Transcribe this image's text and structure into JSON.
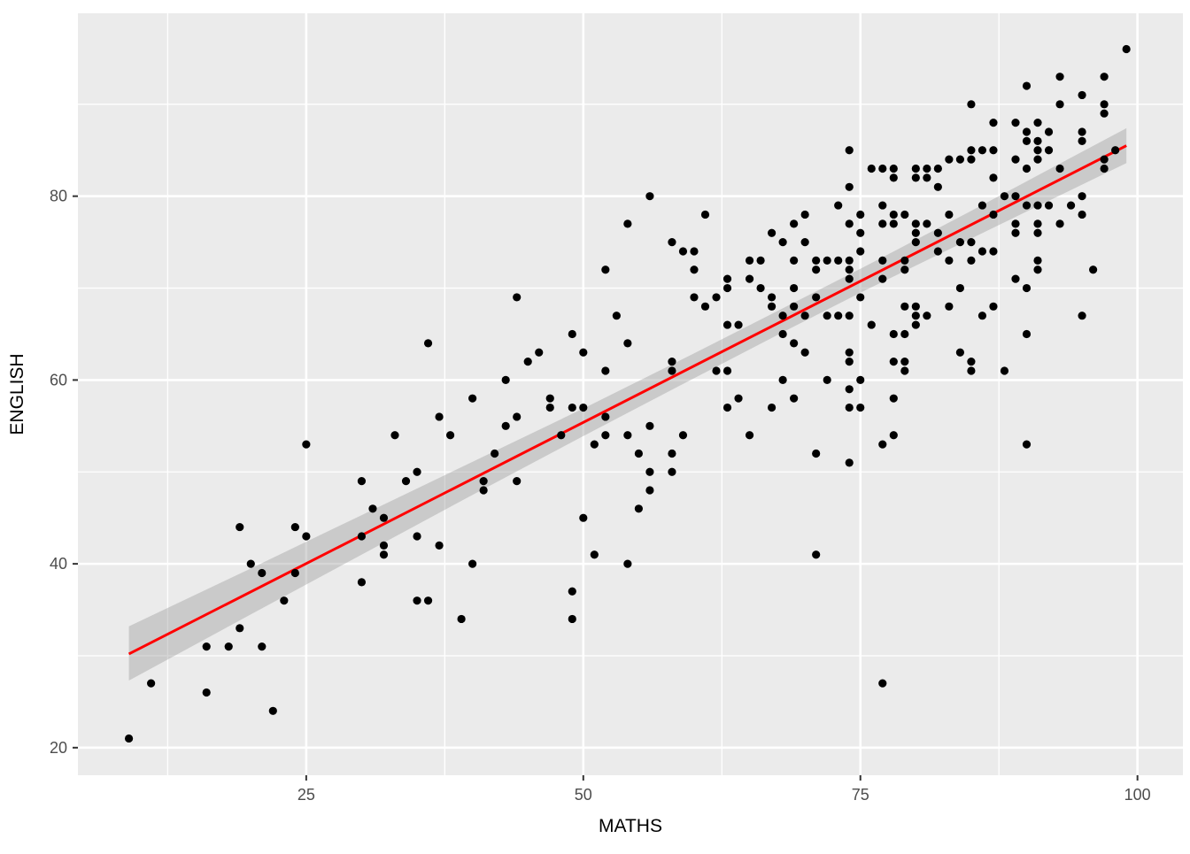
{
  "chart_data": {
    "type": "scatter",
    "title": "",
    "xlabel": "MATHS",
    "ylabel": "ENGLISH",
    "xlim": [
      4.4,
      104.1
    ],
    "ylim": [
      17.0,
      99.9
    ],
    "x_major_ticks": [
      25,
      50,
      75,
      100
    ],
    "x_major_labels": [
      "25",
      "50",
      "75",
      "100"
    ],
    "x_minor_ticks": [
      12.5,
      37.5,
      62.5,
      87.5
    ],
    "y_major_ticks": [
      20,
      40,
      60,
      80
    ],
    "y_major_labels": [
      "20",
      "40",
      "60",
      "80"
    ],
    "y_minor_ticks": [
      30,
      50,
      70,
      90
    ],
    "grid": true,
    "legend_position": "none",
    "points": [
      [
        9,
        21
      ],
      [
        11,
        27
      ],
      [
        16,
        26
      ],
      [
        16,
        31
      ],
      [
        18,
        31
      ],
      [
        19,
        33
      ],
      [
        19,
        44
      ],
      [
        20,
        40
      ],
      [
        21,
        31
      ],
      [
        21,
        39
      ],
      [
        22,
        24
      ],
      [
        23,
        36
      ],
      [
        24,
        39
      ],
      [
        24,
        44
      ],
      [
        25,
        43
      ],
      [
        25,
        53
      ],
      [
        30,
        38
      ],
      [
        30,
        43
      ],
      [
        30,
        49
      ],
      [
        31,
        46
      ],
      [
        32,
        41
      ],
      [
        32,
        42
      ],
      [
        32,
        45
      ],
      [
        33,
        54
      ],
      [
        34,
        49
      ],
      [
        35,
        36
      ],
      [
        35,
        43
      ],
      [
        35,
        50
      ],
      [
        36,
        36
      ],
      [
        36,
        64
      ],
      [
        37,
        42
      ],
      [
        37,
        56
      ],
      [
        38,
        54
      ],
      [
        39,
        34
      ],
      [
        40,
        40
      ],
      [
        40,
        58
      ],
      [
        41,
        48
      ],
      [
        41,
        49
      ],
      [
        42,
        52
      ],
      [
        43,
        55
      ],
      [
        43,
        60
      ],
      [
        44,
        49
      ],
      [
        44,
        56
      ],
      [
        44,
        69
      ],
      [
        45,
        62
      ],
      [
        46,
        63
      ],
      [
        47,
        57
      ],
      [
        47,
        58
      ],
      [
        48,
        54
      ],
      [
        49,
        34
      ],
      [
        49,
        37
      ],
      [
        49,
        57
      ],
      [
        49,
        65
      ],
      [
        50,
        45
      ],
      [
        50,
        57
      ],
      [
        50,
        63
      ],
      [
        51,
        41
      ],
      [
        51,
        53
      ],
      [
        52,
        54
      ],
      [
        52,
        56
      ],
      [
        52,
        61
      ],
      [
        52,
        72
      ],
      [
        53,
        67
      ],
      [
        54,
        40
      ],
      [
        54,
        54
      ],
      [
        54,
        64
      ],
      [
        54,
        77
      ],
      [
        55,
        46
      ],
      [
        55,
        52
      ],
      [
        56,
        48
      ],
      [
        56,
        50
      ],
      [
        56,
        55
      ],
      [
        56,
        80
      ],
      [
        58,
        50
      ],
      [
        58,
        52
      ],
      [
        58,
        61
      ],
      [
        58,
        62
      ],
      [
        58,
        75
      ],
      [
        59,
        54
      ],
      [
        59,
        74
      ],
      [
        60,
        69
      ],
      [
        60,
        72
      ],
      [
        60,
        74
      ],
      [
        61,
        68
      ],
      [
        61,
        78
      ],
      [
        62,
        61
      ],
      [
        62,
        69
      ],
      [
        63,
        57
      ],
      [
        63,
        61
      ],
      [
        63,
        66
      ],
      [
        63,
        70
      ],
      [
        63,
        71
      ],
      [
        64,
        58
      ],
      [
        64,
        66
      ],
      [
        65,
        54
      ],
      [
        65,
        71
      ],
      [
        65,
        73
      ],
      [
        66,
        70
      ],
      [
        66,
        73
      ],
      [
        67,
        57
      ],
      [
        67,
        68
      ],
      [
        67,
        69
      ],
      [
        67,
        76
      ],
      [
        68,
        60
      ],
      [
        68,
        65
      ],
      [
        68,
        67
      ],
      [
        68,
        75
      ],
      [
        69,
        58
      ],
      [
        69,
        64
      ],
      [
        69,
        68
      ],
      [
        69,
        70
      ],
      [
        69,
        73
      ],
      [
        69,
        77
      ],
      [
        70,
        63
      ],
      [
        70,
        67
      ],
      [
        70,
        75
      ],
      [
        70,
        78
      ],
      [
        71,
        41
      ],
      [
        71,
        52
      ],
      [
        71,
        69
      ],
      [
        71,
        72
      ],
      [
        71,
        73
      ],
      [
        72,
        60
      ],
      [
        72,
        67
      ],
      [
        72,
        73
      ],
      [
        73,
        67
      ],
      [
        73,
        73
      ],
      [
        73,
        79
      ],
      [
        74,
        51
      ],
      [
        74,
        57
      ],
      [
        74,
        59
      ],
      [
        74,
        62
      ],
      [
        74,
        63
      ],
      [
        74,
        67
      ],
      [
        74,
        71
      ],
      [
        74,
        72
      ],
      [
        74,
        73
      ],
      [
        74,
        77
      ],
      [
        74,
        81
      ],
      [
        74,
        85
      ],
      [
        75,
        57
      ],
      [
        75,
        60
      ],
      [
        75,
        69
      ],
      [
        75,
        74
      ],
      [
        75,
        76
      ],
      [
        75,
        78
      ],
      [
        76,
        66
      ],
      [
        76,
        83
      ],
      [
        77,
        27
      ],
      [
        77,
        53
      ],
      [
        77,
        71
      ],
      [
        77,
        73
      ],
      [
        77,
        77
      ],
      [
        77,
        79
      ],
      [
        77,
        83
      ],
      [
        78,
        54
      ],
      [
        78,
        58
      ],
      [
        78,
        62
      ],
      [
        78,
        65
      ],
      [
        78,
        77
      ],
      [
        78,
        78
      ],
      [
        78,
        82
      ],
      [
        78,
        83
      ],
      [
        79,
        61
      ],
      [
        79,
        62
      ],
      [
        79,
        65
      ],
      [
        79,
        68
      ],
      [
        79,
        72
      ],
      [
        79,
        73
      ],
      [
        79,
        78
      ],
      [
        80,
        66
      ],
      [
        80,
        67
      ],
      [
        80,
        68
      ],
      [
        80,
        75
      ],
      [
        80,
        76
      ],
      [
        80,
        77
      ],
      [
        80,
        82
      ],
      [
        80,
        83
      ],
      [
        81,
        67
      ],
      [
        81,
        77
      ],
      [
        81,
        82
      ],
      [
        81,
        83
      ],
      [
        82,
        74
      ],
      [
        82,
        76
      ],
      [
        82,
        81
      ],
      [
        82,
        83
      ],
      [
        83,
        68
      ],
      [
        83,
        73
      ],
      [
        83,
        78
      ],
      [
        83,
        84
      ],
      [
        84,
        63
      ],
      [
        84,
        70
      ],
      [
        84,
        75
      ],
      [
        84,
        84
      ],
      [
        85,
        61
      ],
      [
        85,
        62
      ],
      [
        85,
        73
      ],
      [
        85,
        75
      ],
      [
        85,
        84
      ],
      [
        85,
        85
      ],
      [
        85,
        90
      ],
      [
        86,
        67
      ],
      [
        86,
        74
      ],
      [
        86,
        79
      ],
      [
        86,
        85
      ],
      [
        87,
        68
      ],
      [
        87,
        74
      ],
      [
        87,
        78
      ],
      [
        87,
        82
      ],
      [
        87,
        85
      ],
      [
        87,
        88
      ],
      [
        88,
        61
      ],
      [
        88,
        80
      ],
      [
        89,
        71
      ],
      [
        89,
        76
      ],
      [
        89,
        77
      ],
      [
        89,
        80
      ],
      [
        89,
        84
      ],
      [
        89,
        88
      ],
      [
        90,
        53
      ],
      [
        90,
        65
      ],
      [
        90,
        70
      ],
      [
        90,
        79
      ],
      [
        90,
        83
      ],
      [
        90,
        86
      ],
      [
        90,
        87
      ],
      [
        90,
        92
      ],
      [
        91,
        72
      ],
      [
        91,
        73
      ],
      [
        91,
        76
      ],
      [
        91,
        77
      ],
      [
        91,
        79
      ],
      [
        91,
        84
      ],
      [
        91,
        85
      ],
      [
        91,
        86
      ],
      [
        91,
        88
      ],
      [
        92,
        79
      ],
      [
        92,
        85
      ],
      [
        92,
        87
      ],
      [
        93,
        77
      ],
      [
        93,
        83
      ],
      [
        93,
        90
      ],
      [
        93,
        93
      ],
      [
        94,
        79
      ],
      [
        95,
        67
      ],
      [
        95,
        78
      ],
      [
        95,
        80
      ],
      [
        95,
        86
      ],
      [
        95,
        87
      ],
      [
        95,
        91
      ],
      [
        96,
        72
      ],
      [
        97,
        83
      ],
      [
        97,
        84
      ],
      [
        97,
        89
      ],
      [
        97,
        90
      ],
      [
        97,
        93
      ],
      [
        98,
        85
      ],
      [
        99,
        96
      ]
    ],
    "regression_line": {
      "x_start": 9,
      "y_start": 30.2,
      "x_end": 99,
      "y_end": 85.5
    },
    "confidence_band": {
      "x": [
        9,
        20,
        30,
        40,
        50,
        60,
        68,
        75,
        85,
        92,
        99
      ],
      "lower": [
        27.3,
        34.5,
        41.0,
        47.5,
        53.9,
        60.2,
        65.2,
        69.5,
        75.4,
        79.5,
        83.6
      ],
      "upper": [
        33.2,
        39.5,
        45.3,
        51.1,
        56.9,
        62.9,
        67.8,
        72.1,
        78.4,
        82.9,
        87.4
      ]
    },
    "colors": {
      "panel_background": "#EBEBEB",
      "grid_major": "#FFFFFF",
      "grid_minor": "#FFFFFF",
      "point": "#000000",
      "regression_line": "#FF0000",
      "band_fill": "#999999",
      "tick_label": "#4D4D4D",
      "axis_title": "#000000",
      "tick_mark": "#333333"
    }
  }
}
